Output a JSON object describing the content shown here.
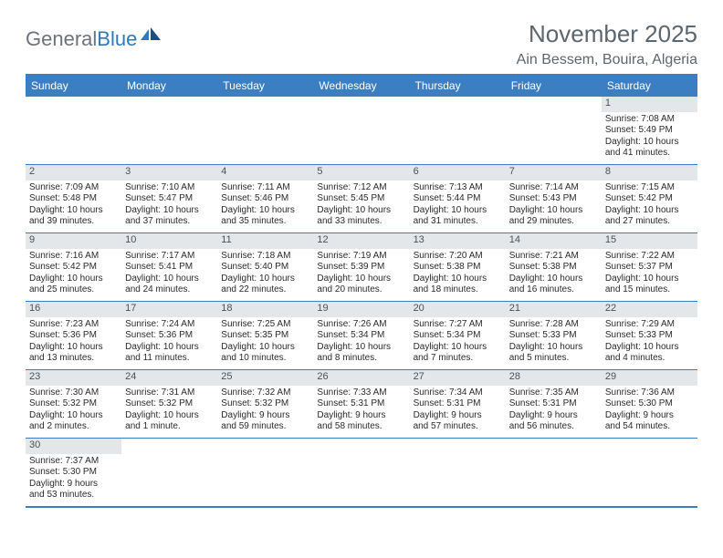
{
  "logo": {
    "gray": "General",
    "blue": "Blue"
  },
  "title": "November 2025",
  "location": "Ain Bessem, Bouira, Algeria",
  "colors": {
    "header_bg": "#3b7fc2",
    "header_text": "#ffffff",
    "daynum_bg": "#e4e7ea",
    "title_text": "#5c666f",
    "logo_gray": "#6b737b",
    "logo_blue": "#2f79bd",
    "body_text": "#2a2a2a"
  },
  "day_headers": [
    "Sunday",
    "Monday",
    "Tuesday",
    "Wednesday",
    "Thursday",
    "Friday",
    "Saturday"
  ],
  "weeks": [
    [
      null,
      null,
      null,
      null,
      null,
      null,
      {
        "n": "1",
        "sr": "Sunrise: 7:08 AM",
        "ss": "Sunset: 5:49 PM",
        "d1": "Daylight: 10 hours",
        "d2": "and 41 minutes."
      }
    ],
    [
      {
        "n": "2",
        "sr": "Sunrise: 7:09 AM",
        "ss": "Sunset: 5:48 PM",
        "d1": "Daylight: 10 hours",
        "d2": "and 39 minutes."
      },
      {
        "n": "3",
        "sr": "Sunrise: 7:10 AM",
        "ss": "Sunset: 5:47 PM",
        "d1": "Daylight: 10 hours",
        "d2": "and 37 minutes."
      },
      {
        "n": "4",
        "sr": "Sunrise: 7:11 AM",
        "ss": "Sunset: 5:46 PM",
        "d1": "Daylight: 10 hours",
        "d2": "and 35 minutes."
      },
      {
        "n": "5",
        "sr": "Sunrise: 7:12 AM",
        "ss": "Sunset: 5:45 PM",
        "d1": "Daylight: 10 hours",
        "d2": "and 33 minutes."
      },
      {
        "n": "6",
        "sr": "Sunrise: 7:13 AM",
        "ss": "Sunset: 5:44 PM",
        "d1": "Daylight: 10 hours",
        "d2": "and 31 minutes."
      },
      {
        "n": "7",
        "sr": "Sunrise: 7:14 AM",
        "ss": "Sunset: 5:43 PM",
        "d1": "Daylight: 10 hours",
        "d2": "and 29 minutes."
      },
      {
        "n": "8",
        "sr": "Sunrise: 7:15 AM",
        "ss": "Sunset: 5:42 PM",
        "d1": "Daylight: 10 hours",
        "d2": "and 27 minutes."
      }
    ],
    [
      {
        "n": "9",
        "sr": "Sunrise: 7:16 AM",
        "ss": "Sunset: 5:42 PM",
        "d1": "Daylight: 10 hours",
        "d2": "and 25 minutes."
      },
      {
        "n": "10",
        "sr": "Sunrise: 7:17 AM",
        "ss": "Sunset: 5:41 PM",
        "d1": "Daylight: 10 hours",
        "d2": "and 24 minutes."
      },
      {
        "n": "11",
        "sr": "Sunrise: 7:18 AM",
        "ss": "Sunset: 5:40 PM",
        "d1": "Daylight: 10 hours",
        "d2": "and 22 minutes."
      },
      {
        "n": "12",
        "sr": "Sunrise: 7:19 AM",
        "ss": "Sunset: 5:39 PM",
        "d1": "Daylight: 10 hours",
        "d2": "and 20 minutes."
      },
      {
        "n": "13",
        "sr": "Sunrise: 7:20 AM",
        "ss": "Sunset: 5:38 PM",
        "d1": "Daylight: 10 hours",
        "d2": "and 18 minutes."
      },
      {
        "n": "14",
        "sr": "Sunrise: 7:21 AM",
        "ss": "Sunset: 5:38 PM",
        "d1": "Daylight: 10 hours",
        "d2": "and 16 minutes."
      },
      {
        "n": "15",
        "sr": "Sunrise: 7:22 AM",
        "ss": "Sunset: 5:37 PM",
        "d1": "Daylight: 10 hours",
        "d2": "and 15 minutes."
      }
    ],
    [
      {
        "n": "16",
        "sr": "Sunrise: 7:23 AM",
        "ss": "Sunset: 5:36 PM",
        "d1": "Daylight: 10 hours",
        "d2": "and 13 minutes."
      },
      {
        "n": "17",
        "sr": "Sunrise: 7:24 AM",
        "ss": "Sunset: 5:36 PM",
        "d1": "Daylight: 10 hours",
        "d2": "and 11 minutes."
      },
      {
        "n": "18",
        "sr": "Sunrise: 7:25 AM",
        "ss": "Sunset: 5:35 PM",
        "d1": "Daylight: 10 hours",
        "d2": "and 10 minutes."
      },
      {
        "n": "19",
        "sr": "Sunrise: 7:26 AM",
        "ss": "Sunset: 5:34 PM",
        "d1": "Daylight: 10 hours",
        "d2": "and 8 minutes."
      },
      {
        "n": "20",
        "sr": "Sunrise: 7:27 AM",
        "ss": "Sunset: 5:34 PM",
        "d1": "Daylight: 10 hours",
        "d2": "and 7 minutes."
      },
      {
        "n": "21",
        "sr": "Sunrise: 7:28 AM",
        "ss": "Sunset: 5:33 PM",
        "d1": "Daylight: 10 hours",
        "d2": "and 5 minutes."
      },
      {
        "n": "22",
        "sr": "Sunrise: 7:29 AM",
        "ss": "Sunset: 5:33 PM",
        "d1": "Daylight: 10 hours",
        "d2": "and 4 minutes."
      }
    ],
    [
      {
        "n": "23",
        "sr": "Sunrise: 7:30 AM",
        "ss": "Sunset: 5:32 PM",
        "d1": "Daylight: 10 hours",
        "d2": "and 2 minutes."
      },
      {
        "n": "24",
        "sr": "Sunrise: 7:31 AM",
        "ss": "Sunset: 5:32 PM",
        "d1": "Daylight: 10 hours",
        "d2": "and 1 minute."
      },
      {
        "n": "25",
        "sr": "Sunrise: 7:32 AM",
        "ss": "Sunset: 5:32 PM",
        "d1": "Daylight: 9 hours",
        "d2": "and 59 minutes."
      },
      {
        "n": "26",
        "sr": "Sunrise: 7:33 AM",
        "ss": "Sunset: 5:31 PM",
        "d1": "Daylight: 9 hours",
        "d2": "and 58 minutes."
      },
      {
        "n": "27",
        "sr": "Sunrise: 7:34 AM",
        "ss": "Sunset: 5:31 PM",
        "d1": "Daylight: 9 hours",
        "d2": "and 57 minutes."
      },
      {
        "n": "28",
        "sr": "Sunrise: 7:35 AM",
        "ss": "Sunset: 5:31 PM",
        "d1": "Daylight: 9 hours",
        "d2": "and 56 minutes."
      },
      {
        "n": "29",
        "sr": "Sunrise: 7:36 AM",
        "ss": "Sunset: 5:30 PM",
        "d1": "Daylight: 9 hours",
        "d2": "and 54 minutes."
      }
    ],
    [
      {
        "n": "30",
        "sr": "Sunrise: 7:37 AM",
        "ss": "Sunset: 5:30 PM",
        "d1": "Daylight: 9 hours",
        "d2": "and 53 minutes."
      },
      null,
      null,
      null,
      null,
      null,
      null
    ]
  ]
}
